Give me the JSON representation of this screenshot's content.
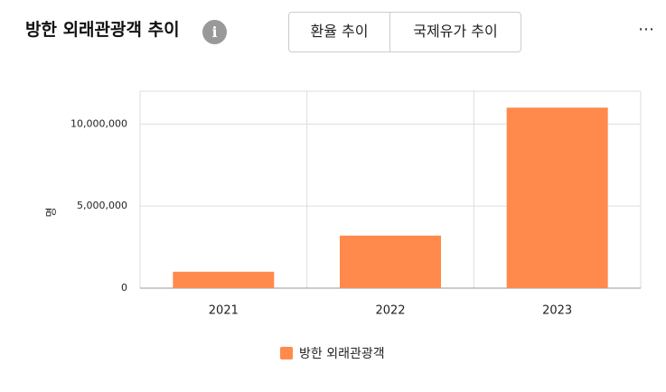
{
  "header": {
    "title": "방한 외래관광객 추이",
    "tabs": [
      "환율 추이",
      "국제유가 추이"
    ]
  },
  "chart_data": {
    "type": "bar",
    "y_label": "명",
    "categories": [
      "2021",
      "2022",
      "2023"
    ],
    "series": [
      {
        "name": "방한 외래관광객",
        "color": "#ff8a4c",
        "values": [
          1000000,
          3200000,
          11000000
        ]
      }
    ],
    "ylim": [
      0,
      12000000
    ],
    "yticks": [
      0,
      {
        "value": 5000000,
        "label": "5,000,000"
      },
      {
        "value": 10000000,
        "label": "10,000,000"
      }
    ],
    "grid": true
  }
}
